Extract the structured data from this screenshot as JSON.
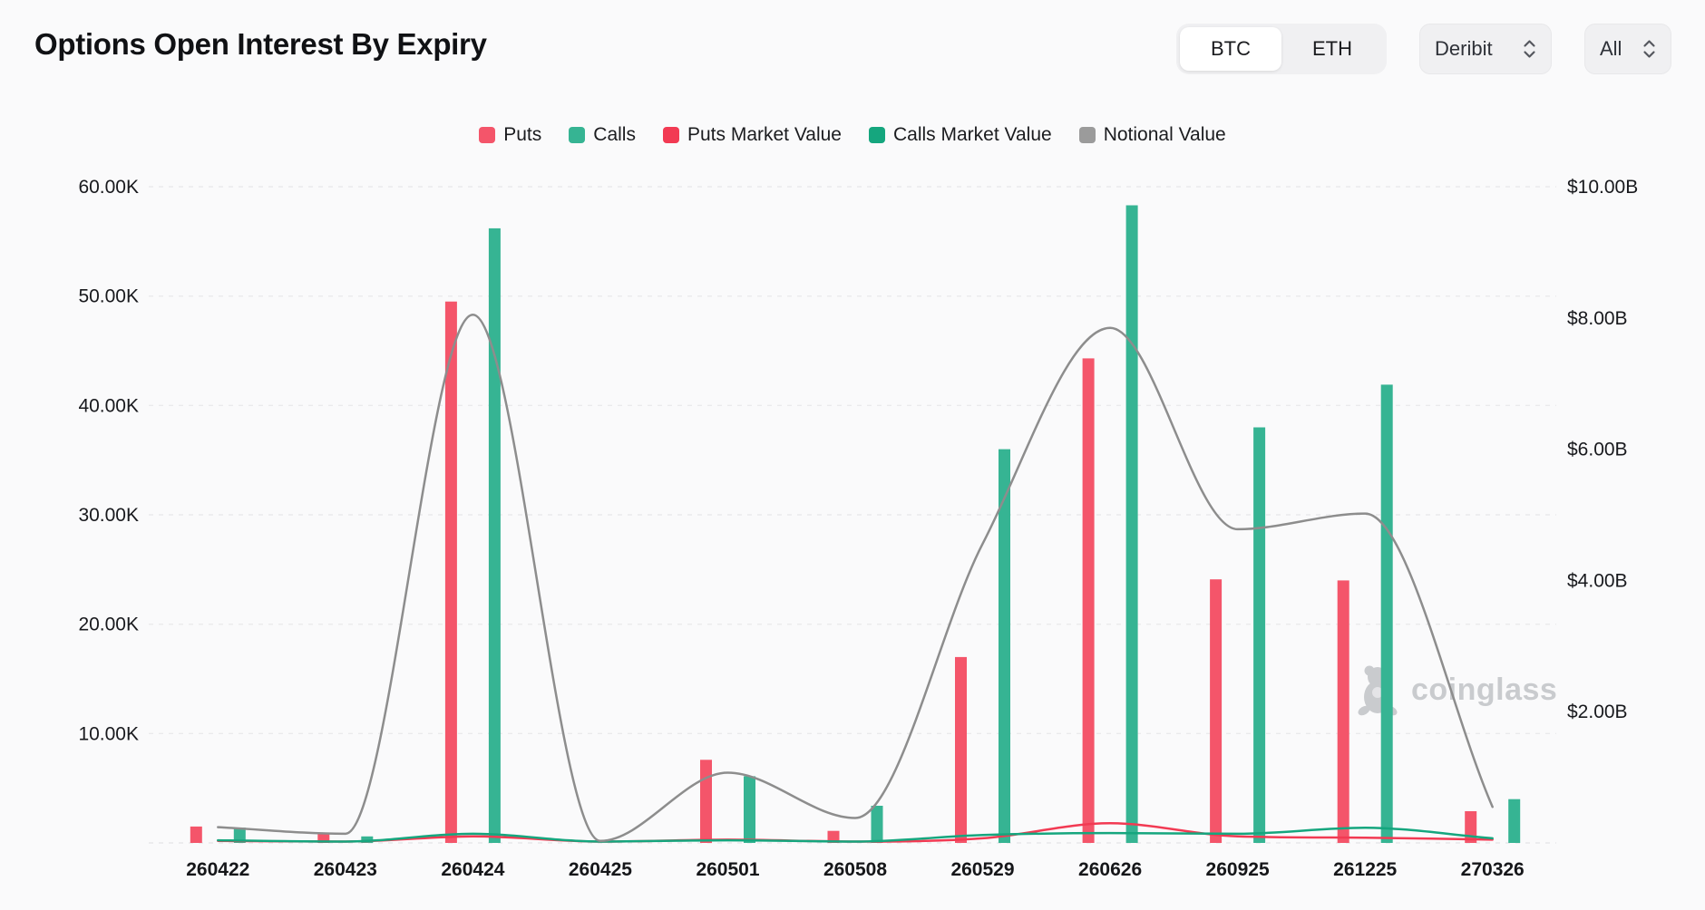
{
  "header": {
    "title": "Options Open Interest By Expiry"
  },
  "controls": {
    "asset_toggle": {
      "options": [
        "BTC",
        "ETH"
      ],
      "selected": "BTC"
    },
    "exchange_select": {
      "value": "Deribit"
    },
    "range_select": {
      "value": "All"
    }
  },
  "legend": [
    {
      "label": "Puts",
      "color": "#f4556a",
      "slug": "puts"
    },
    {
      "label": "Calls",
      "color": "#36b493",
      "slug": "calls"
    },
    {
      "label": "Puts Market Value",
      "color": "#f23a53",
      "slug": "puts-market-value"
    },
    {
      "label": "Calls Market Value",
      "color": "#15a67e",
      "slug": "calls-market-value"
    },
    {
      "label": "Notional Value",
      "color": "#9b9b9b",
      "slug": "notional-value"
    }
  ],
  "watermark": {
    "text": "coinglass"
  },
  "chart_data": {
    "type": "bar+line",
    "title": "Options Open Interest By Expiry",
    "categories": [
      "260422",
      "260423",
      "260424",
      "260425",
      "260501",
      "260508",
      "260529",
      "260626",
      "260925",
      "261225",
      "270326"
    ],
    "series": [
      {
        "name": "Puts",
        "type": "bar",
        "axis": "left",
        "unit": "K contracts",
        "color": "#f4556a",
        "values": [
          1.5,
          0.8,
          49.5,
          0,
          7.6,
          1.1,
          17.0,
          44.3,
          24.1,
          24.0,
          2.9
        ]
      },
      {
        "name": "Calls",
        "type": "bar",
        "axis": "left",
        "unit": "K contracts",
        "color": "#36b493",
        "values": [
          1.4,
          0.6,
          56.2,
          0,
          6.1,
          3.4,
          36.0,
          58.3,
          38.0,
          41.9,
          4.0
        ]
      },
      {
        "name": "Puts Market Value",
        "type": "line",
        "axis": "right",
        "unit": "$B",
        "color": "#f23a53",
        "values": [
          0.03,
          0.02,
          0.1,
          0.01,
          0.05,
          0.02,
          0.07,
          0.3,
          0.1,
          0.08,
          0.05
        ]
      },
      {
        "name": "Calls Market Value",
        "type": "line",
        "axis": "right",
        "unit": "$B",
        "color": "#15a67e",
        "values": [
          0.04,
          0.02,
          0.14,
          0.01,
          0.04,
          0.02,
          0.12,
          0.15,
          0.14,
          0.23,
          0.07
        ]
      },
      {
        "name": "Notional Value",
        "type": "line",
        "axis": "right",
        "unit": "$B",
        "color": "#8d8d8d",
        "values": [
          0.24,
          0.14,
          8.05,
          0.03,
          1.07,
          0.38,
          4.56,
          7.85,
          4.78,
          5.02,
          0.55
        ]
      }
    ],
    "left_axis": {
      "title": "Open Interest (contracts)",
      "min": 0,
      "max": 60,
      "ticks": [
        {
          "label": "60.00K",
          "value": 60
        },
        {
          "label": "50.00K",
          "value": 50
        },
        {
          "label": "40.00K",
          "value": 40
        },
        {
          "label": "30.00K",
          "value": 30
        },
        {
          "label": "20.00K",
          "value": 20
        },
        {
          "label": "10.00K",
          "value": 10
        }
      ]
    },
    "right_axis": {
      "title": "Value (USD)",
      "min": 0,
      "max": 10,
      "ticks": [
        {
          "label": "$10.00B",
          "value": 10
        },
        {
          "label": "$8.00B",
          "value": 8
        },
        {
          "label": "$6.00B",
          "value": 6
        },
        {
          "label": "$4.00B",
          "value": 4
        },
        {
          "label": "$2.00B",
          "value": 2
        }
      ]
    },
    "grid": {
      "horizontal": "dashed",
      "vertical": "none"
    },
    "legend_position": "top"
  }
}
